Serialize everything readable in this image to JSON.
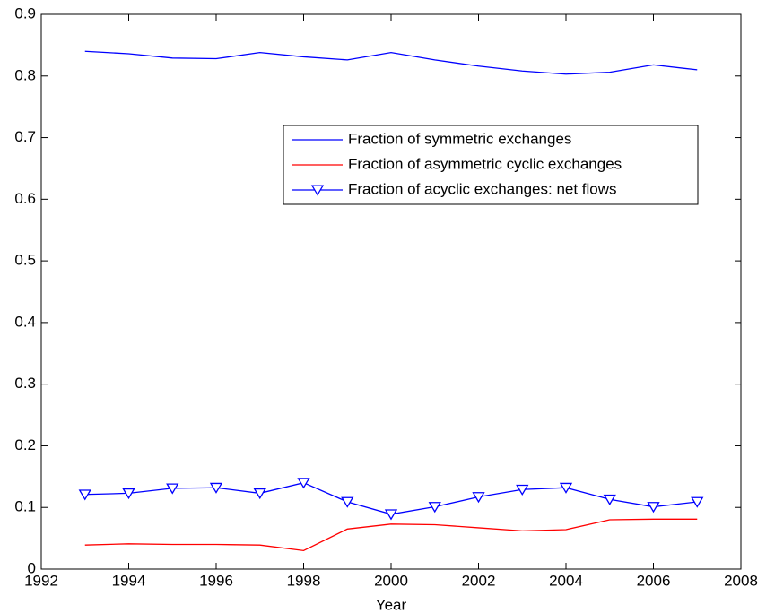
{
  "chart_data": {
    "type": "line",
    "xlabel": "Year",
    "x": [
      1993,
      1994,
      1995,
      1996,
      1997,
      1998,
      1999,
      2000,
      2001,
      2002,
      2003,
      2004,
      2005,
      2006,
      2007
    ],
    "series": [
      {
        "name": "Fraction of symmetric exchanges",
        "color": "#0000ff",
        "values": [
          0.84,
          0.836,
          0.829,
          0.828,
          0.838,
          0.831,
          0.826,
          0.838,
          0.826,
          0.816,
          0.808,
          0.803,
          0.806,
          0.818,
          0.81
        ]
      },
      {
        "name": "Fraction of asymmetric cyclic exchanges",
        "color": "#ff0000",
        "values": [
          0.039,
          0.041,
          0.04,
          0.04,
          0.039,
          0.03,
          0.065,
          0.073,
          0.072,
          0.067,
          0.062,
          0.064,
          0.08,
          0.081,
          0.081
        ]
      },
      {
        "name": "Fraction of acyclic exchanges: net flows",
        "color": "#0000ff",
        "marker": "triangle-down",
        "values": [
          0.121,
          0.123,
          0.131,
          0.132,
          0.123,
          0.14,
          0.109,
          0.089,
          0.101,
          0.117,
          0.129,
          0.132,
          0.113,
          0.101,
          0.109
        ]
      }
    ],
    "xlim": [
      1992,
      2008
    ],
    "xticks": [
      1992,
      1994,
      1996,
      1998,
      2000,
      2002,
      2004,
      2006,
      2008
    ],
    "ylim": [
      0,
      0.9
    ],
    "yticks": [
      0,
      0.1,
      0.2,
      0.3,
      0.4,
      0.5,
      0.6,
      0.7,
      0.8,
      0.9
    ],
    "legend": "upper right",
    "grid": false
  }
}
